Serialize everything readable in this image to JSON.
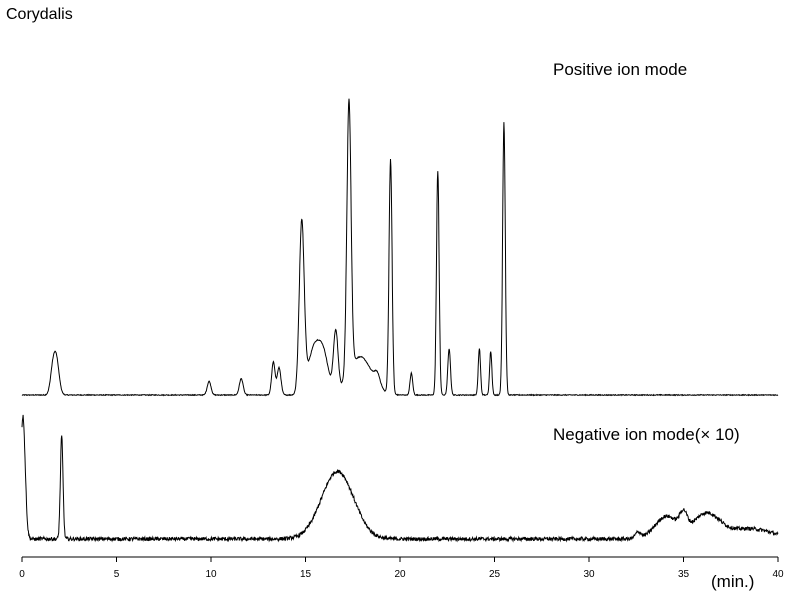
{
  "chart_data": {
    "type": "line",
    "title": "Corydalis",
    "xlabel": "(min.)",
    "xlim": [
      0,
      40
    ],
    "xticks": [
      0,
      5,
      10,
      15,
      20,
      25,
      30,
      35,
      40
    ],
    "grid": false,
    "series": [
      {
        "name": "Positive ion mode",
        "baseline": 0,
        "noise": 0.3,
        "peaks": [
          {
            "x": 1.8,
            "h": 14,
            "w": 0.15
          },
          {
            "x": 1.6,
            "h": 6,
            "w": 0.12
          },
          {
            "x": 9.9,
            "h": 5,
            "w": 0.1
          },
          {
            "x": 11.6,
            "h": 6,
            "w": 0.1
          },
          {
            "x": 13.3,
            "h": 12,
            "w": 0.09
          },
          {
            "x": 13.6,
            "h": 10,
            "w": 0.1
          },
          {
            "x": 14.8,
            "h": 62,
            "w": 0.13
          },
          {
            "x": 15.5,
            "h": 18,
            "w": 0.35
          },
          {
            "x": 16.0,
            "h": 10,
            "w": 0.25
          },
          {
            "x": 16.6,
            "h": 22,
            "w": 0.12
          },
          {
            "x": 17.3,
            "h": 100,
            "w": 0.11
          },
          {
            "x": 17.9,
            "h": 14,
            "w": 0.6
          },
          {
            "x": 18.8,
            "h": 4,
            "w": 0.15
          },
          {
            "x": 19.5,
            "h": 86,
            "w": 0.08
          },
          {
            "x": 20.6,
            "h": 8,
            "w": 0.07
          },
          {
            "x": 22.0,
            "h": 82,
            "w": 0.07
          },
          {
            "x": 22.6,
            "h": 17,
            "w": 0.07
          },
          {
            "x": 24.2,
            "h": 17,
            "w": 0.06
          },
          {
            "x": 24.8,
            "h": 16,
            "w": 0.06
          },
          {
            "x": 25.5,
            "h": 100,
            "w": 0.07
          }
        ]
      },
      {
        "name": "Negative ion mode(×10)",
        "baseline": 1,
        "noise": 1.8,
        "peaks": [
          {
            "x": 0.05,
            "h": 60,
            "w": 0.12
          },
          {
            "x": 2.1,
            "h": 50,
            "w": 0.07
          },
          {
            "x": 16.7,
            "h": 33,
            "w": 0.85
          },
          {
            "x": 32.6,
            "h": 3,
            "w": 0.15
          },
          {
            "x": 34.1,
            "h": 11,
            "w": 0.6
          },
          {
            "x": 35.0,
            "h": 8,
            "w": 0.2
          },
          {
            "x": 36.2,
            "h": 12,
            "w": 0.7
          },
          {
            "x": 38.5,
            "h": 5,
            "w": 1.2
          }
        ]
      }
    ]
  },
  "labels": {
    "title": "Corydalis",
    "positive": "Positive ion mode",
    "negative": "Negative ion mode(× 10)",
    "x_unit": "(min.)"
  }
}
